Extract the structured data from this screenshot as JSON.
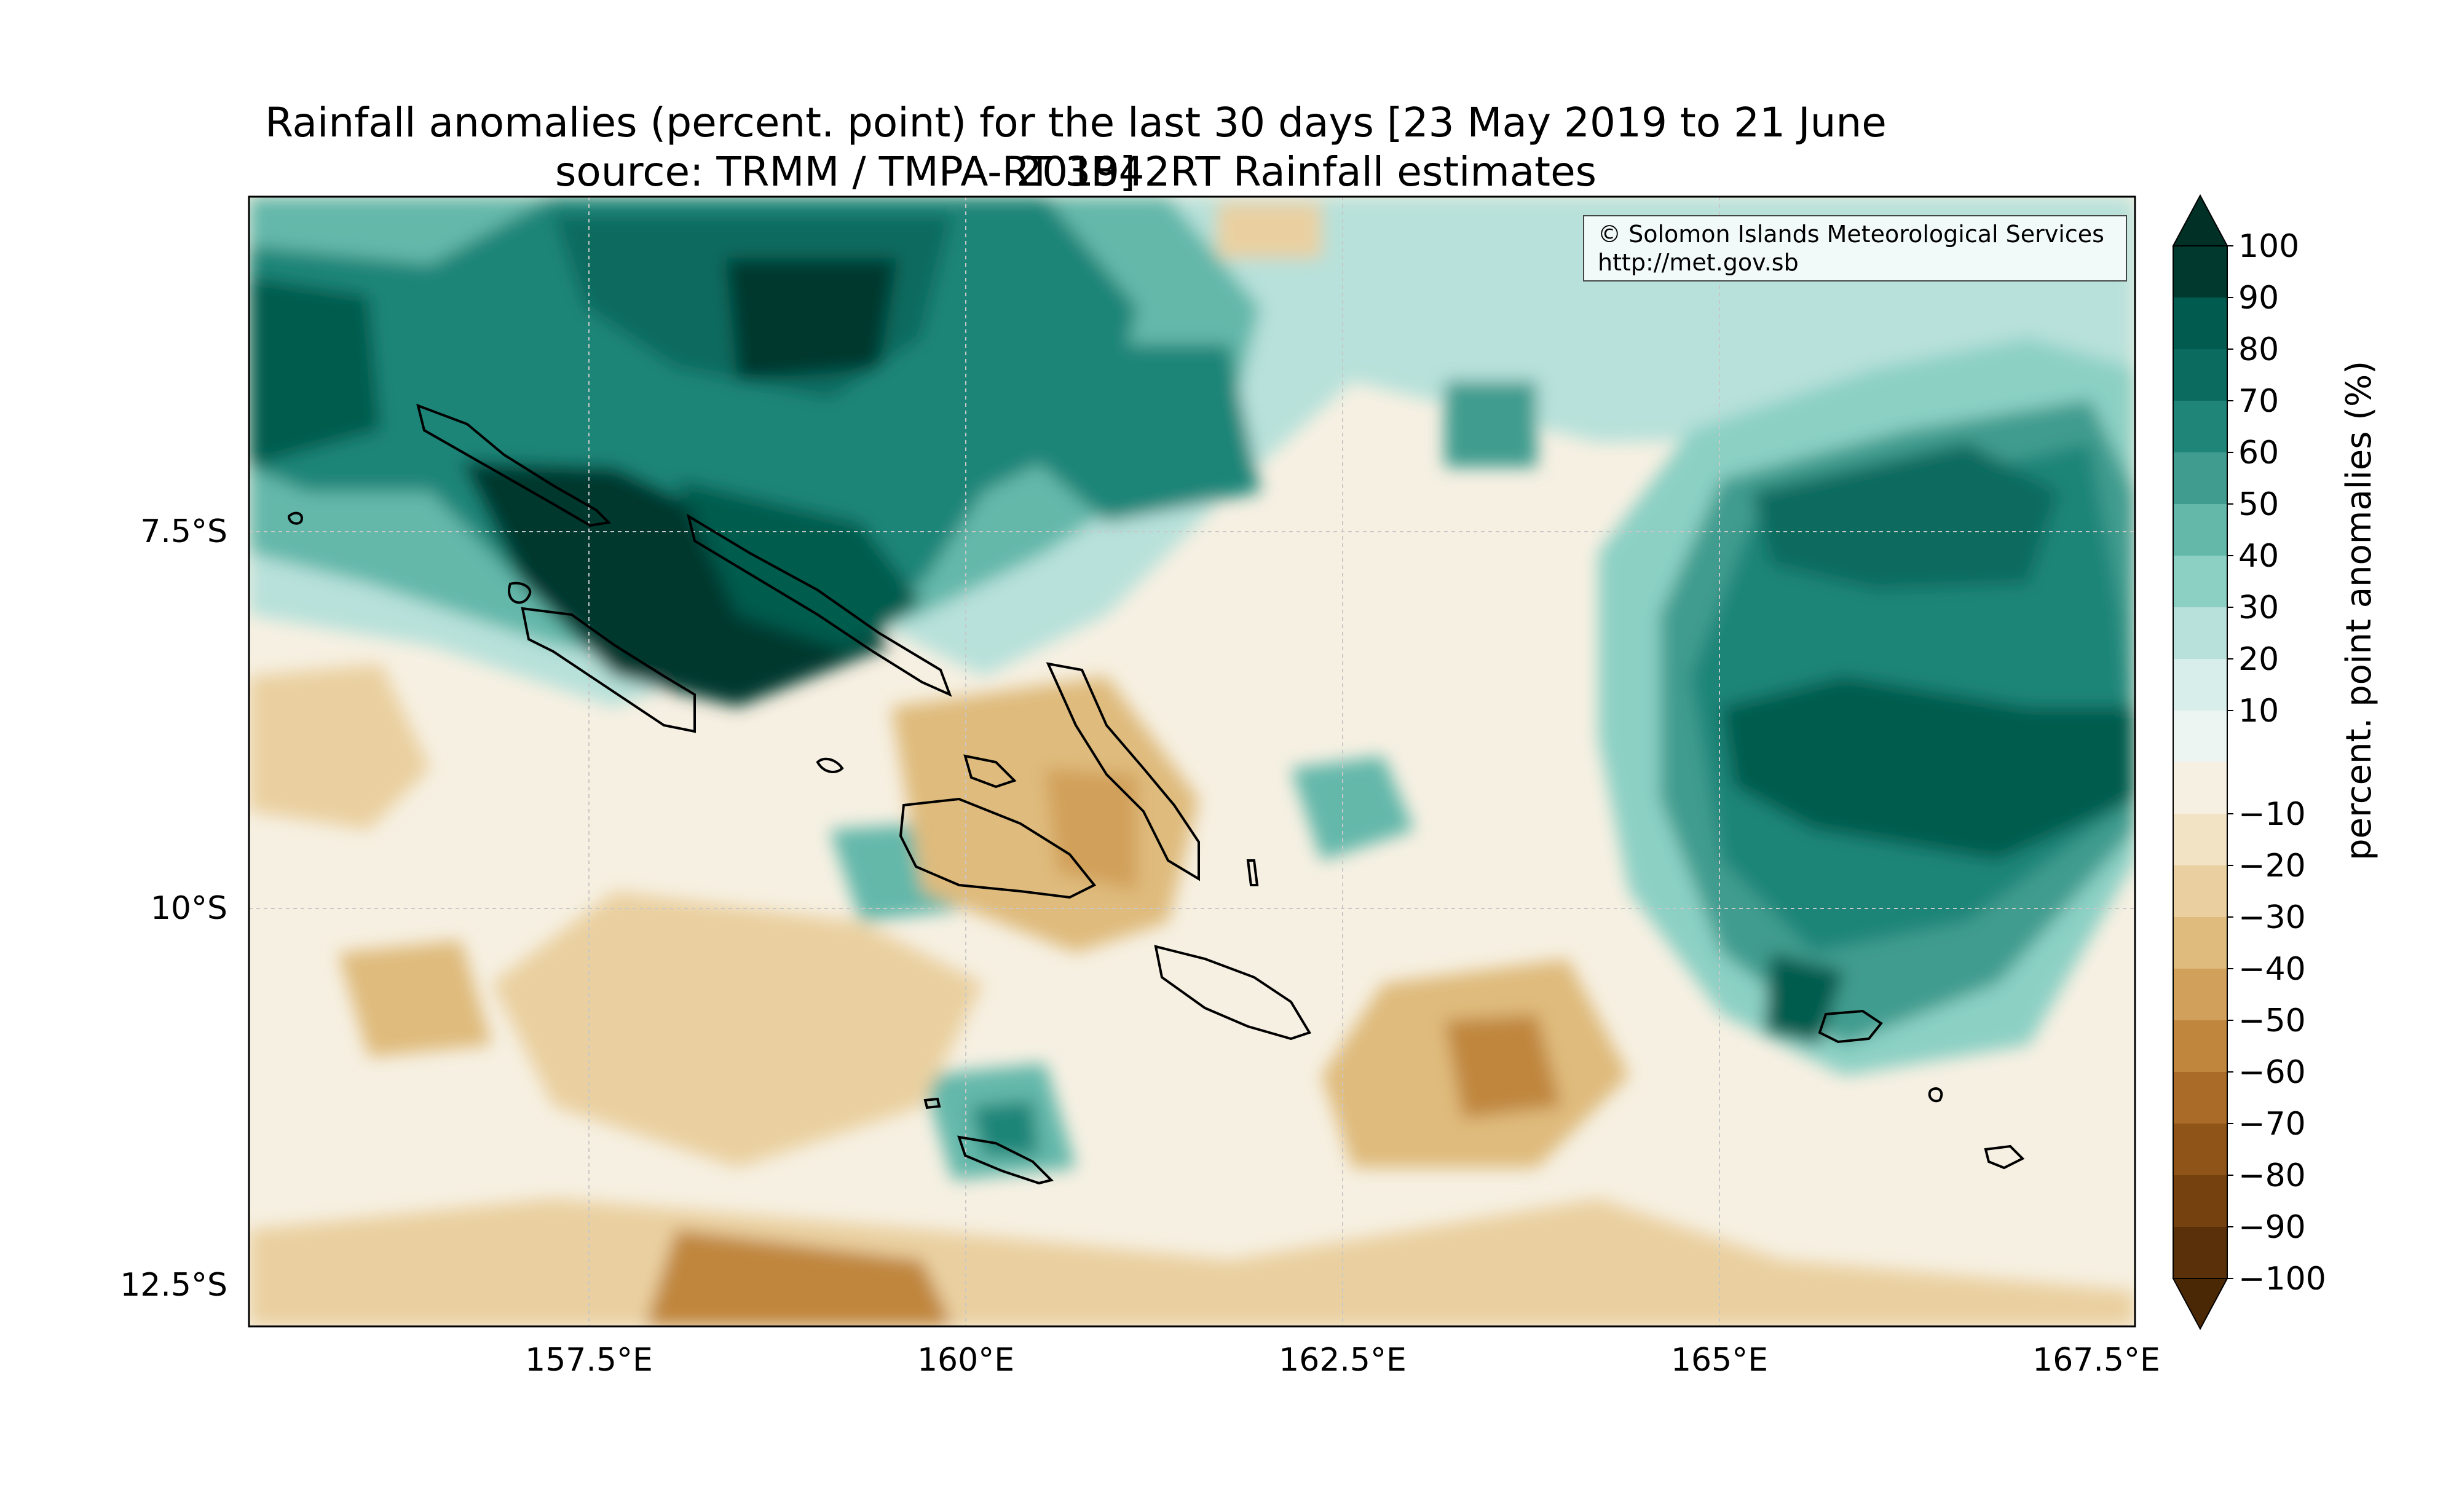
{
  "title_line1": "Rainfall anomalies (percent. point) for the last 30 days [23 May 2019 to 21 June 2019]",
  "title_line2": "source: TRMM / TMPA-RT 3B42RT Rainfall estimates",
  "credit": {
    "line1": "© Solomon Islands Meteorological Services",
    "line2": "http://met.gov.sb"
  },
  "map": {
    "lon_range": [
      155.0,
      167.5
    ],
    "lat_range": [
      -12.5,
      -5.0
    ],
    "lon_ticks": [
      "157.5°E",
      "160°E",
      "162.5°E",
      "165°E",
      "167.5°E"
    ],
    "lat_ticks": [
      "7.5°S",
      "10°S",
      "12.5°S"
    ],
    "grid": true,
    "coastlines": true
  },
  "colorbar": {
    "label": "percent. point anomalies (%)",
    "tick_labels": [
      "100",
      "90",
      "80",
      "70",
      "60",
      "50",
      "40",
      "30",
      "20",
      "10",
      "−10",
      "−20",
      "−30",
      "−40",
      "−50",
      "−60",
      "−70",
      "−80",
      "−90",
      "−100"
    ],
    "colors_top_to_bottom": [
      "#01392e",
      "#015b4e",
      "#0b6b5e",
      "#1f8578",
      "#3f9c8f",
      "#63b8aa",
      "#8cd0c4",
      "#b7e1da",
      "#d8eeea",
      "#edf5f3",
      "#f6f0e2",
      "#f1e3c3",
      "#ead0a0",
      "#dfbb7d",
      "#d1a05a",
      "#c0863e",
      "#a96b27",
      "#8f5518",
      "#74410f",
      "#5a300a"
    ],
    "extend_top_color": "#013126",
    "extend_bottom_color": "#4a2806",
    "extend": "both"
  }
}
